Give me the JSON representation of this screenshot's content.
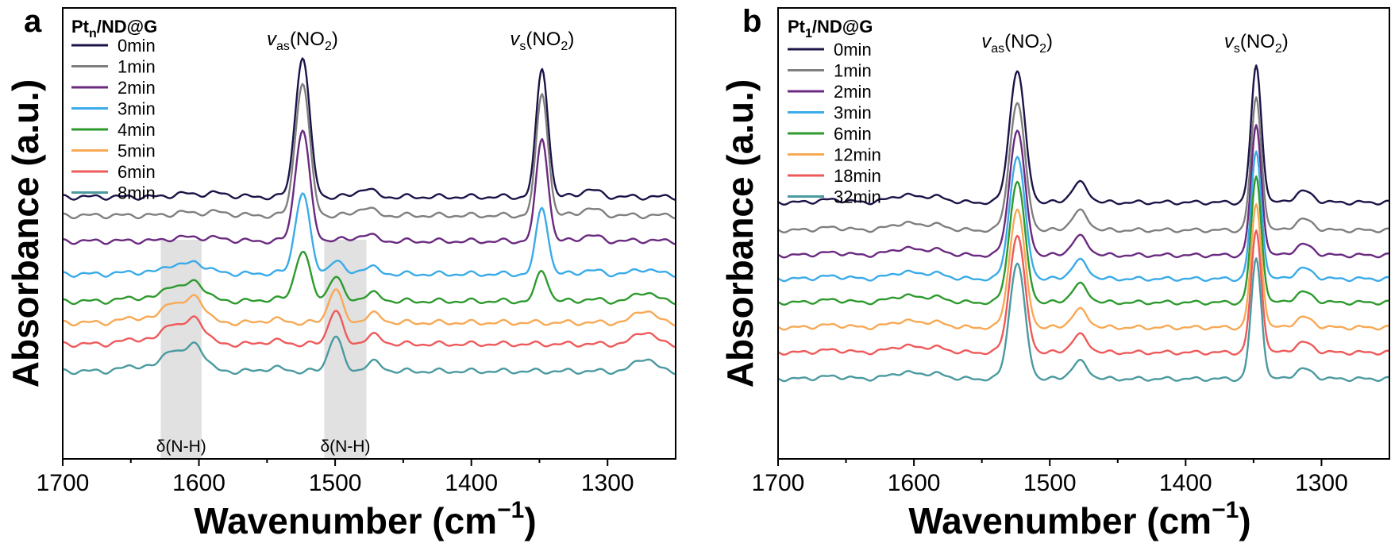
{
  "chart_data": [
    {
      "panel": "a",
      "type": "line",
      "title": "",
      "xlabel": "Wavenumber (cm",
      "xlabel_sup": "−1",
      "xlabel_close": ")",
      "ylabel": "Absorbance (a.u.)",
      "xlim": [
        1700,
        1250
      ],
      "xticks": [
        1700,
        1600,
        1500,
        1400,
        1300
      ],
      "legend_title_main": "Pt",
      "legend_title_sub": "n",
      "legend_title_rest": "/ND@G",
      "annotations": [
        {
          "text_main": "v",
          "text_sub": "as",
          "text_rest": "(NO",
          "text_sub2": "2",
          "text_close": ")",
          "x": 1524
        },
        {
          "text_main": "v",
          "text_sub": "s",
          "text_rest": "(NO",
          "text_sub2": "2",
          "text_close": ")",
          "x": 1348
        }
      ],
      "bands": [
        {
          "label": "δ(N-H)",
          "x_from": 1628,
          "x_to": 1598
        },
        {
          "label": "δ(N-H)",
          "x_from": 1508,
          "x_to": 1477
        }
      ],
      "series": [
        {
          "name": "0min",
          "color": "#1c1448",
          "offset": 0.0,
          "nh": 0.0,
          "no2": 1.0,
          "shift": 0
        },
        {
          "name": "1min",
          "color": "#7f7f7f",
          "offset": -0.13,
          "nh": 0.0,
          "no2": 0.95,
          "shift": 0
        },
        {
          "name": "2min",
          "color": "#6a2a80",
          "offset": -0.31,
          "nh": 0.05,
          "no2": 0.8,
          "shift": 0
        },
        {
          "name": "3min",
          "color": "#3aabe8",
          "offset": -0.54,
          "nh": 0.3,
          "no2": 0.52,
          "shift": 0
        },
        {
          "name": "4min",
          "color": "#2e9a2e",
          "offset": -0.73,
          "nh": 0.55,
          "no2": 0.24,
          "shift": 2
        },
        {
          "name": "5min",
          "color": "#f7a955",
          "offset": -0.88,
          "nh": 0.75,
          "no2": 0.0,
          "shift": 4
        },
        {
          "name": "6min",
          "color": "#ee5a5a",
          "offset": -1.03,
          "nh": 0.75,
          "no2": 0.0,
          "shift": 5
        },
        {
          "name": "8min",
          "color": "#4a9aa0",
          "offset": -1.22,
          "nh": 0.78,
          "no2": 0.0,
          "shift": 6
        }
      ]
    },
    {
      "panel": "b",
      "type": "line",
      "title": "",
      "xlabel": "Wavenumber (cm",
      "xlabel_sup": "−1",
      "xlabel_close": ")",
      "ylabel": "Absorbance (a.u.)",
      "xlim": [
        1700,
        1250
      ],
      "xticks": [
        1700,
        1600,
        1500,
        1400,
        1300
      ],
      "legend_title_main": "Pt",
      "legend_title_sub": "1",
      "legend_title_rest": "/ND@G",
      "annotations": [
        {
          "text_main": "v",
          "text_sub": "as",
          "text_rest": "(NO",
          "text_sub2": "2",
          "text_close": ")",
          "x": 1524
        },
        {
          "text_main": "v",
          "text_sub": "s",
          "text_rest": "(NO",
          "text_sub2": "2",
          "text_close": ")",
          "x": 1348
        }
      ],
      "series": [
        {
          "name": "0min",
          "color": "#1c1448",
          "offset": 0.0,
          "no2": 1.0
        },
        {
          "name": "1min",
          "color": "#7f7f7f",
          "offset": -0.2,
          "no2": 0.97
        },
        {
          "name": "2min",
          "color": "#6a2a80",
          "offset": -0.38,
          "no2": 0.95
        },
        {
          "name": "3min",
          "color": "#3aabe8",
          "offset": -0.55,
          "no2": 0.93
        },
        {
          "name": "6min",
          "color": "#2e9a2e",
          "offset": -0.72,
          "no2": 0.92
        },
        {
          "name": "12min",
          "color": "#f7a955",
          "offset": -0.9,
          "no2": 0.9
        },
        {
          "name": "18min",
          "color": "#ee5a5a",
          "offset": -1.08,
          "no2": 0.89
        },
        {
          "name": "32min",
          "color": "#4a9aa0",
          "offset": -1.27,
          "no2": 0.88
        }
      ]
    }
  ]
}
